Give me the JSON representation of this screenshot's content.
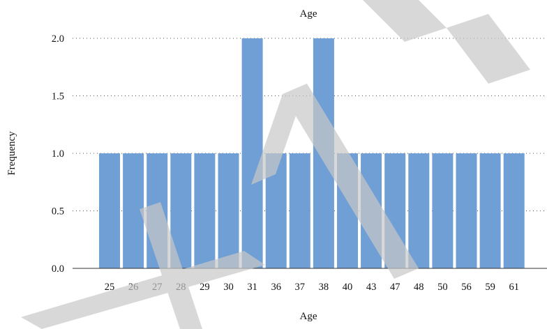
{
  "chart_data": {
    "type": "bar",
    "title": "Age",
    "xlabel": "Age",
    "ylabel": "Frequency",
    "categories": [
      "25",
      "26",
      "27",
      "28",
      "29",
      "30",
      "31",
      "36",
      "37",
      "38",
      "40",
      "43",
      "47",
      "48",
      "50",
      "56",
      "59",
      "61"
    ],
    "values": [
      1,
      1,
      1,
      1,
      1,
      1,
      2,
      1,
      1,
      2,
      1,
      1,
      1,
      1,
      1,
      1,
      1,
      1
    ],
    "ylim": [
      0,
      2
    ],
    "yticks": [
      "0.0",
      "0.5",
      "1.0",
      "1.5",
      "2.0"
    ],
    "grid": "horizontal dotted",
    "bar_color": "#6f9fd4",
    "watermark": "TRAC"
  }
}
